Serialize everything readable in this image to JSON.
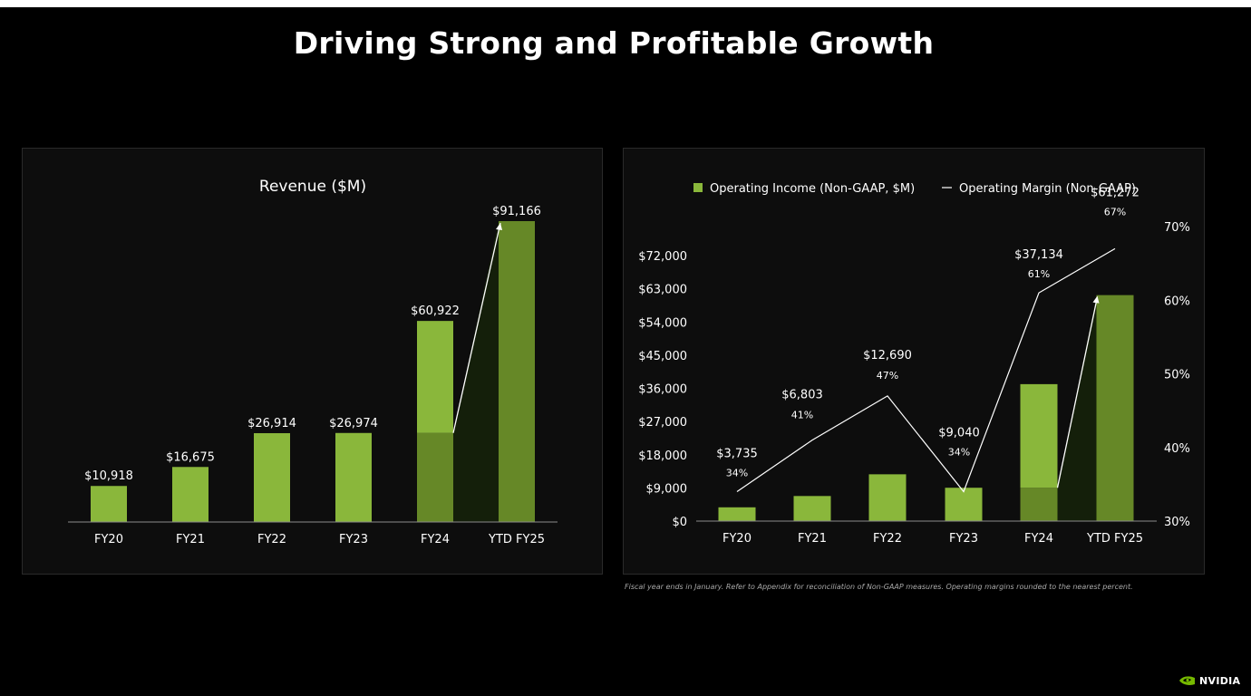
{
  "slide": {
    "title": "Driving Strong and Profitable Growth",
    "footnote": "Fiscal year ends in January. Refer to Appendix for reconciliation of Non-GAAP measures. Operating margins rounded to the nearest percent.",
    "logo_text": "NVIDIA",
    "logo_icon": "nvidia-eye-icon"
  },
  "colors": {
    "bar_light": "#8ab73b",
    "bar_dark": "#668827",
    "area_fill": "#141f0a",
    "panel_bg": "#0d0d0d",
    "text": "#ffffff"
  },
  "chart_data": [
    {
      "type": "bar",
      "title": "Revenue ($M)",
      "categories": [
        "FY20",
        "FY21",
        "FY22",
        "FY23",
        "FY24",
        "YTD FY25"
      ],
      "values": [
        10918,
        16675,
        26914,
        26974,
        60922,
        91166
      ],
      "value_labels": [
        "$10,918",
        "$16,675",
        "$26,914",
        "$26,974",
        "$60,922",
        "$91,166"
      ],
      "ylim": [
        0,
        91166
      ],
      "grid": false,
      "y_axis_visible": false
    },
    {
      "type": "bar",
      "legend": {
        "placement": "top",
        "bar_label": "Operating Income (Non-GAAP, $M)",
        "line_label": "Operating Margin (Non-GAAP)"
      },
      "categories": [
        "FY20",
        "FY21",
        "FY22",
        "FY23",
        "FY24",
        "YTD FY25"
      ],
      "series": [
        {
          "kind": "bar",
          "values": [
            3735,
            6803,
            12690,
            9040,
            37134,
            61272
          ],
          "value_labels": [
            "$3,735",
            "$6,803",
            "$12,690",
            "$9,040",
            "$37,134",
            "$61,272"
          ]
        },
        {
          "kind": "line",
          "axis": "right",
          "values": [
            34,
            41,
            47,
            34,
            61,
            67
          ],
          "value_labels": [
            "34%",
            "41%",
            "47%",
            "34%",
            "61%",
            "67%"
          ]
        }
      ],
      "y_left": {
        "ylim": [
          0,
          72000
        ],
        "tick_values": [
          0,
          9000,
          18000,
          27000,
          36000,
          45000,
          54000,
          63000,
          72000
        ],
        "tick_labels": [
          "$0",
          "$9,000",
          "$18,000",
          "$27,000",
          "$36,000",
          "$45,000",
          "$54,000",
          "$63,000",
          "$72,000"
        ]
      },
      "y_right": {
        "ylim": [
          30,
          70
        ],
        "tick_values": [
          30,
          40,
          50,
          60,
          70
        ],
        "tick_labels": [
          "30%",
          "40%",
          "50%",
          "60%",
          "70%"
        ]
      },
      "grid": false
    }
  ]
}
